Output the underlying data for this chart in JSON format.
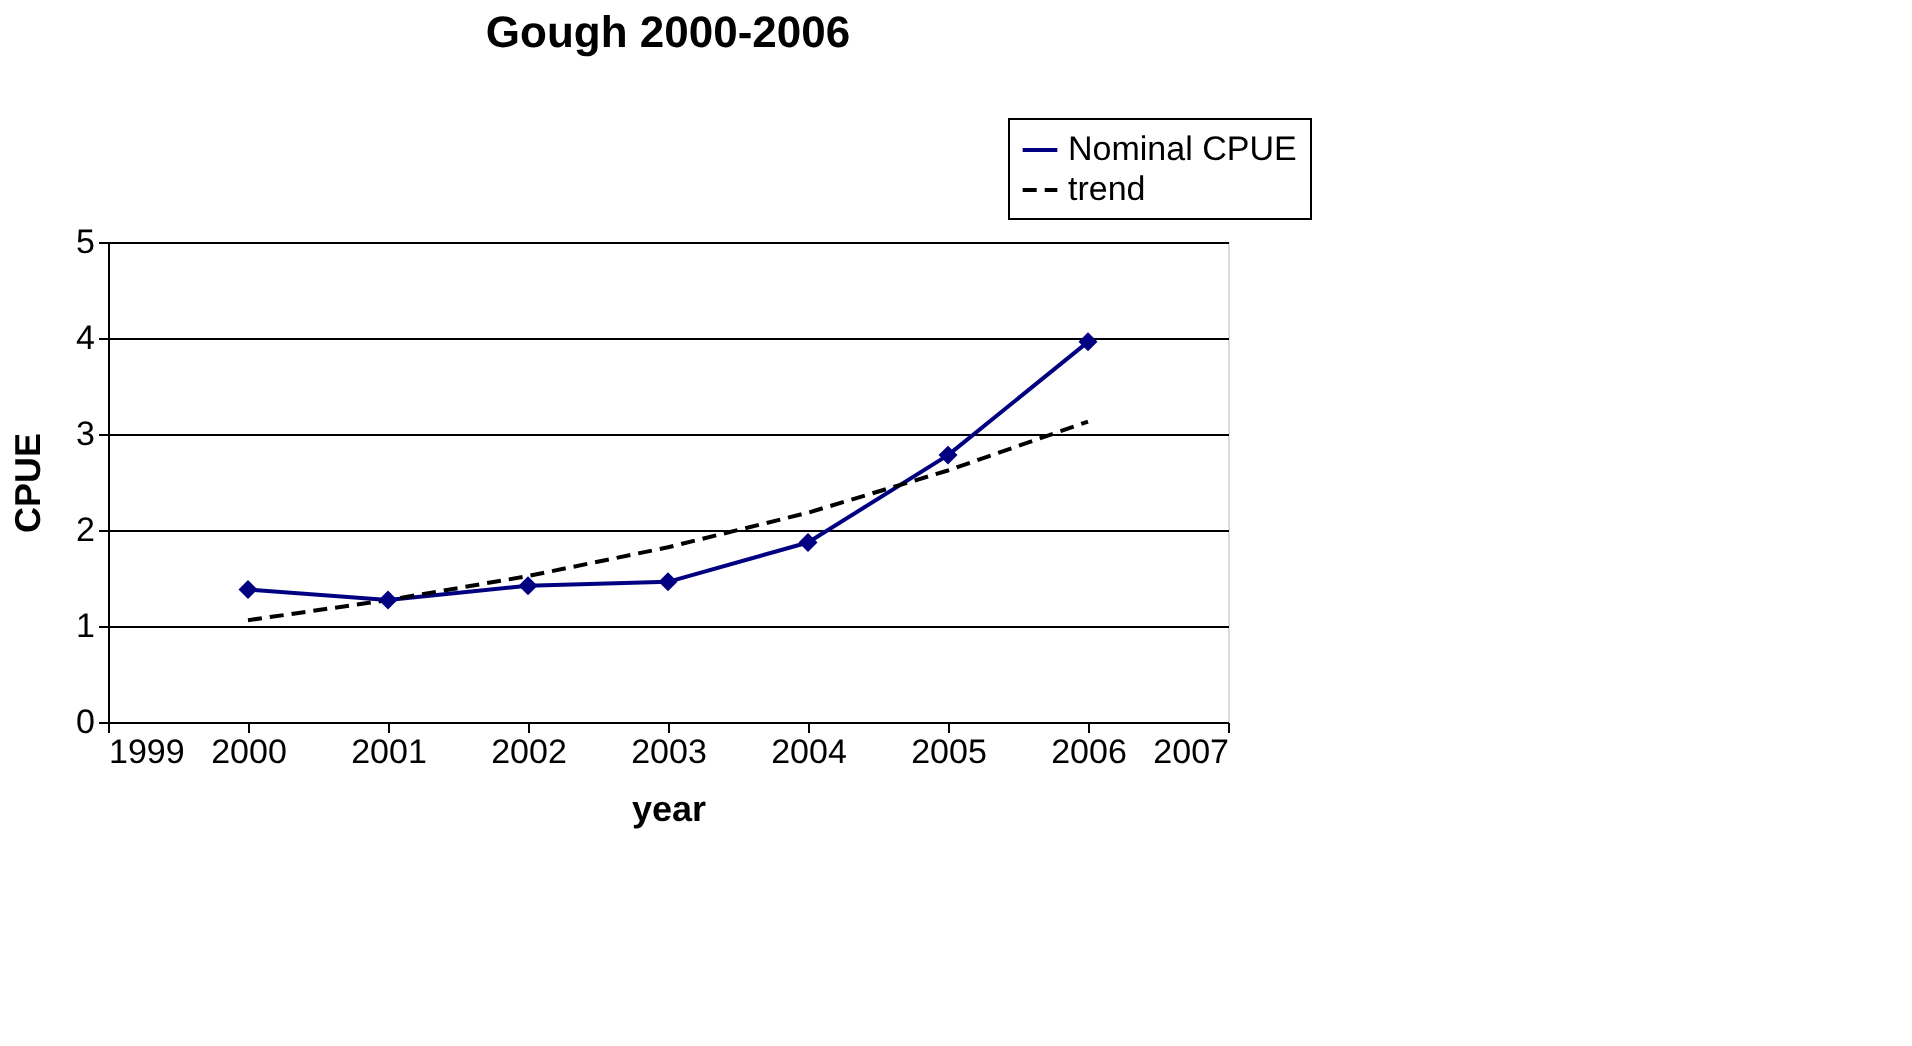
{
  "chart_data": {
    "type": "line",
    "title": "Gough 2000-2006",
    "xlabel": "year",
    "ylabel": "CPUE",
    "xlim": [
      1999,
      2007
    ],
    "xticks": [
      1999,
      2000,
      2001,
      2002,
      2003,
      2004,
      2005,
      2006,
      2007
    ],
    "ylim": [
      0,
      5
    ],
    "yticks": [
      0,
      1,
      2,
      3,
      4,
      5
    ],
    "grid": "y",
    "legend": "top right",
    "series": [
      {
        "name": "Nominal CPUE",
        "color": "#000080",
        "marker": "diamond",
        "line_style": "solid",
        "x": [
          2000,
          2001,
          2002,
          2003,
          2004,
          2005,
          2006
        ],
        "values": [
          1.38,
          1.27,
          1.42,
          1.46,
          1.87,
          2.78,
          3.96
        ]
      },
      {
        "name": "trend",
        "type": "line",
        "color": "#000000",
        "marker": "none",
        "line_style": "dashed",
        "x": [
          2000,
          2001,
          2002,
          2003,
          2004,
          2005,
          2006
        ],
        "values": [
          1.06,
          1.27,
          1.52,
          1.82,
          2.18,
          2.62,
          3.13
        ]
      }
    ]
  }
}
